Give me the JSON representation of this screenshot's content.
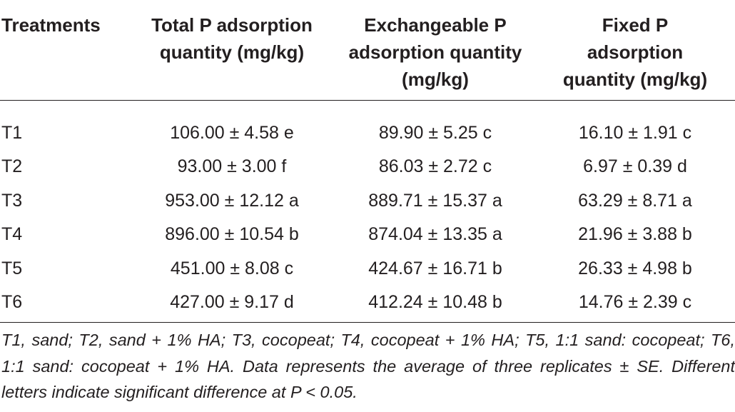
{
  "table": {
    "headers": [
      [
        "Treatments"
      ],
      [
        "Total P adsorption",
        "quantity (mg/kg)"
      ],
      [
        "Exchangeable P",
        "adsorption quantity",
        "(mg/kg)"
      ],
      [
        "Fixed P",
        "adsorption",
        "quantity (mg/kg)"
      ]
    ],
    "rows": [
      [
        "T1",
        "106.00 ± 4.58 e",
        "89.90 ± 5.25 c",
        "16.10 ± 1.91 c"
      ],
      [
        "T2",
        "93.00 ± 3.00 f",
        "86.03 ± 2.72 c",
        "6.97 ± 0.39 d"
      ],
      [
        "T3",
        "953.00 ± 12.12 a",
        "889.71 ± 15.37 a",
        "63.29 ± 8.71 a"
      ],
      [
        "T4",
        "896.00 ± 10.54 b",
        "874.04 ± 13.35 a",
        "21.96 ± 3.88 b"
      ],
      [
        "T5",
        "451.00 ± 8.08 c",
        "424.67 ± 16.71 b",
        "26.33 ± 4.98 b"
      ],
      [
        "T6",
        "427.00 ± 9.17 d",
        "412.24 ± 10.48 b",
        "14.76 ± 2.39 c"
      ]
    ]
  },
  "footnote": "T1, sand; T2, sand + 1% HA; T3, cocopeat; T4, cocopeat + 1% HA; T5, 1:1 sand: cocopeat; T6, 1:1 sand: cocopeat + 1% HA. Data represents the average of three replicates ± SE. Different letters indicate significant difference at P < 0.05."
}
